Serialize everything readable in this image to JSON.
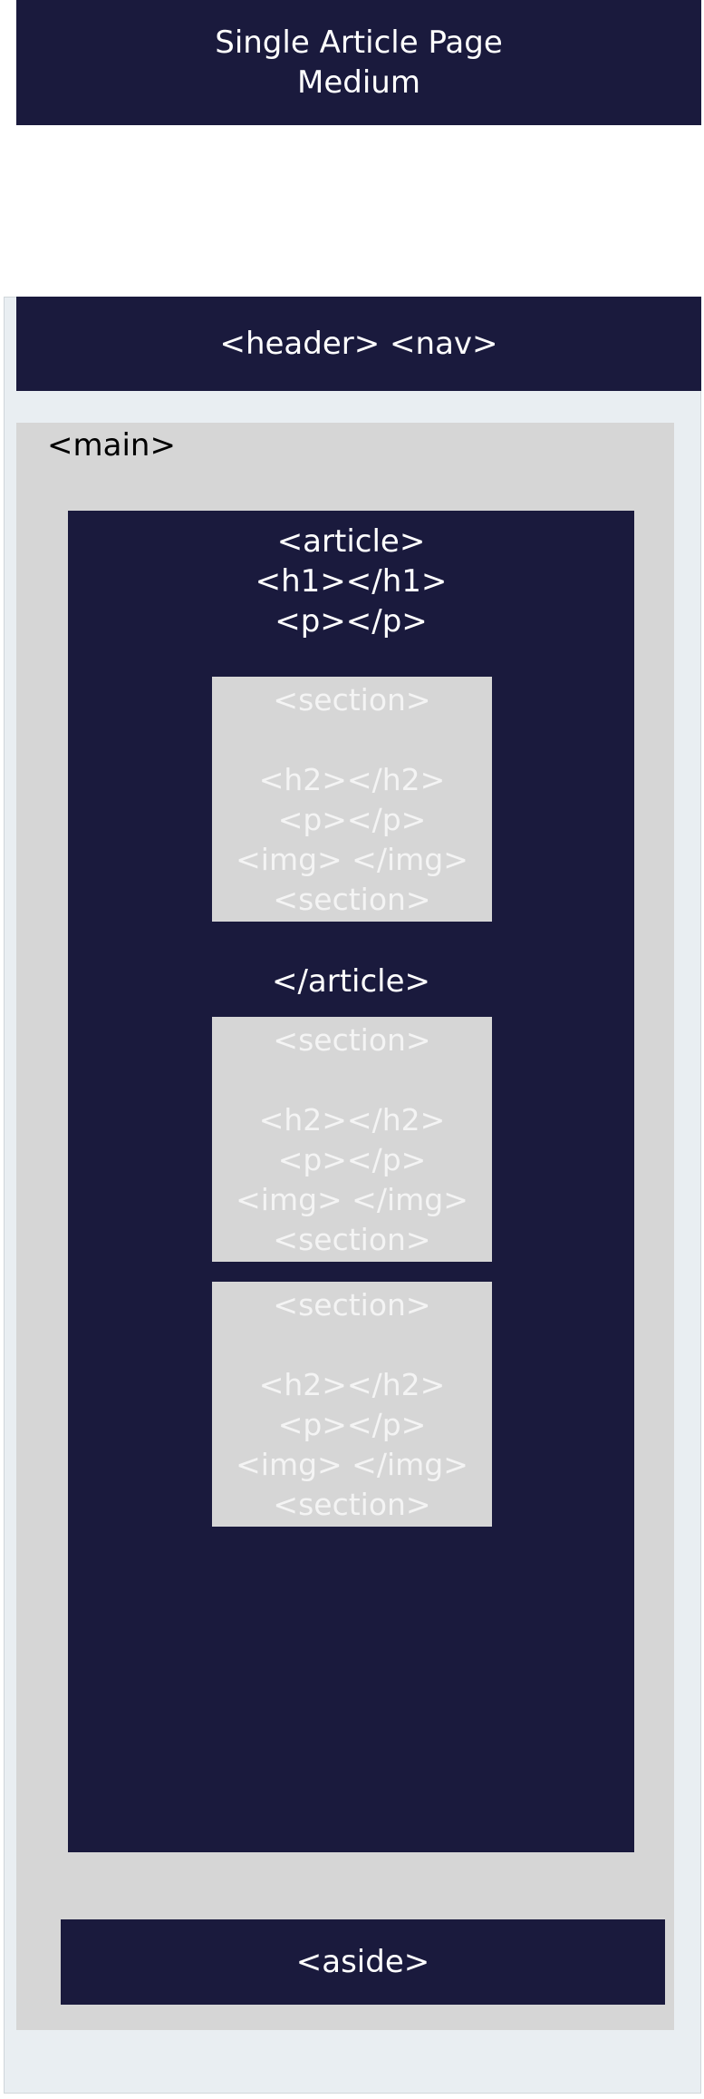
{
  "title": {
    "line1": "Single Article Page",
    "line2": "Medium"
  },
  "header_nav": {
    "label": "<header> <nav>"
  },
  "main": {
    "label": "<main>"
  },
  "article": {
    "open_lines": [
      "<article>",
      "<h1></h1>",
      "<p></p>"
    ],
    "close_label": "</article>"
  },
  "sections": [
    {
      "lines": [
        "<section>",
        "",
        "<h2></h2>",
        "<p></p>",
        "<img> </img>",
        "<section>"
      ]
    },
    {
      "lines": [
        "<section>",
        "",
        "<h2></h2>",
        "<p></p>",
        "<img> </img>",
        "<section>"
      ]
    },
    {
      "lines": [
        "<section>",
        "",
        "<h2></h2>",
        "<p></p>",
        "<img> </img>",
        "<section>"
      ]
    }
  ],
  "aside": {
    "label": "<aside>"
  },
  "colors": {
    "dark_block": "#1a1a3d",
    "light_block": "#d6d6d6",
    "outer_background": "#e9eef2"
  }
}
